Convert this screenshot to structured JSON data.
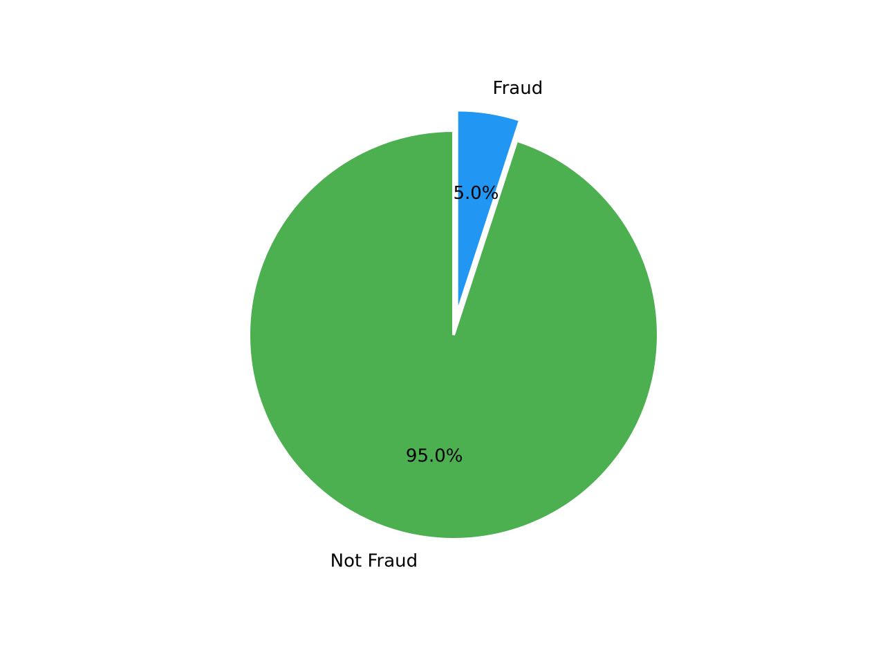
{
  "chart_data": {
    "type": "pie",
    "title": "",
    "start_angle": "top",
    "direction": "clockwise",
    "slices": [
      {
        "name": "Fraud",
        "value": 5.0,
        "percent_label": "5.0%",
        "color": "#2196F3",
        "exploded": true
      },
      {
        "name": "Not Fraud",
        "value": 95.0,
        "percent_label": "95.0%",
        "color": "#4CAF50",
        "exploded": false
      }
    ]
  }
}
